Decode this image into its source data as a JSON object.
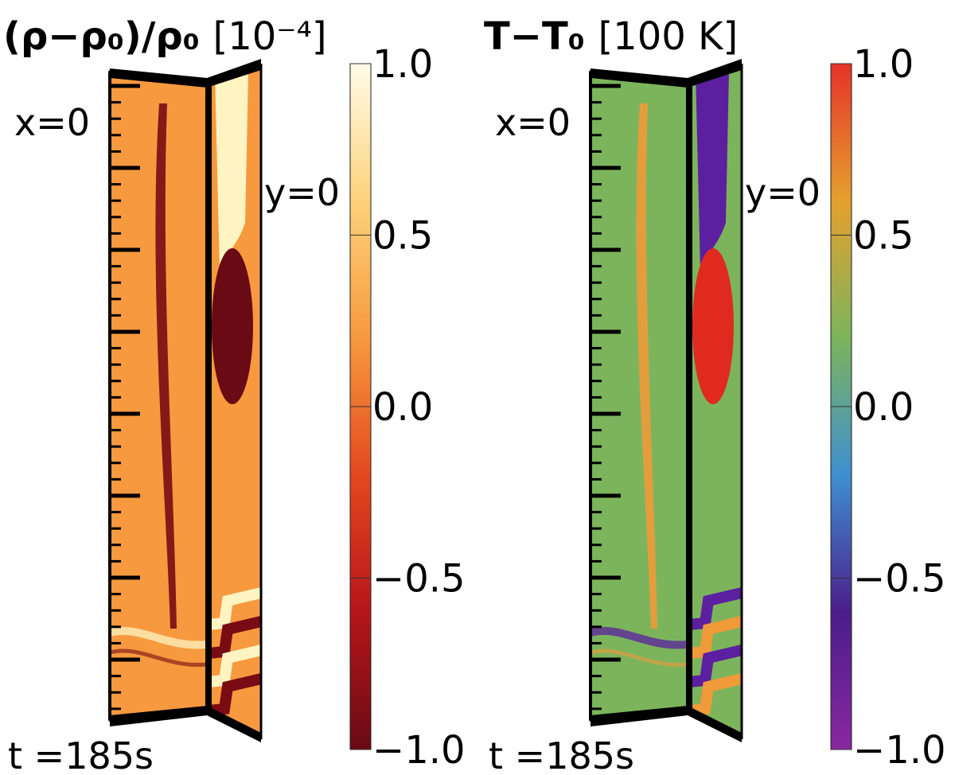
{
  "chart_data": [
    {
      "type": "heatmap",
      "title": "(ρ−ρ₀)/ρ₀ [10⁻⁴]",
      "title_main": "(ρ−ρ₀)/ρ₀ ",
      "title_unit": "[10⁻⁴]",
      "face_labels": [
        "x=0",
        "y=0"
      ],
      "time_label": "t =185s",
      "colorbar": {
        "range": [
          -1.0,
          1.0
        ],
        "ticks": [
          "1.0",
          "0.5",
          "0.0",
          "−0.5",
          "−1.0"
        ],
        "tick_values": [
          1.0,
          0.5,
          0.0,
          -0.5,
          -1.0
        ],
        "colormap": [
          "#fffce8",
          "#fdd27b",
          "#f7993e",
          "#e3491e",
          "#b5161a",
          "#6a0a14"
        ],
        "background": "#f7993e"
      },
      "features": {
        "band_color": "#7a0a14",
        "ellipse_color": "#6a0a14",
        "top_column_color": "#fff4c2",
        "bottom_stripe_color": "#fff4c2"
      }
    },
    {
      "type": "heatmap",
      "title": "T−T₀ [100 K]",
      "title_main": "T−T₀ ",
      "title_unit": "[100 K]",
      "face_labels": [
        "x=0",
        "y=0"
      ],
      "time_label": "t =185s",
      "colorbar": {
        "range": [
          -1.0,
          1.0
        ],
        "ticks": [
          "1.0",
          "0.5",
          "0.0",
          "−0.5",
          "−1.0"
        ],
        "tick_values": [
          1.0,
          0.5,
          0.0,
          -0.5,
          -1.0
        ],
        "colormap": [
          "#e5332a",
          "#e5a02e",
          "#7cb45c",
          "#3f8fd0",
          "#4a1e8a",
          "#8a28a0"
        ],
        "background": "#7cb45c"
      },
      "features": {
        "band_color": "#f09a3a",
        "ellipse_color": "#e02a20",
        "top_column_color": "#5b1fa0",
        "bottom_stripe_color": "#5b1fa0"
      }
    }
  ]
}
